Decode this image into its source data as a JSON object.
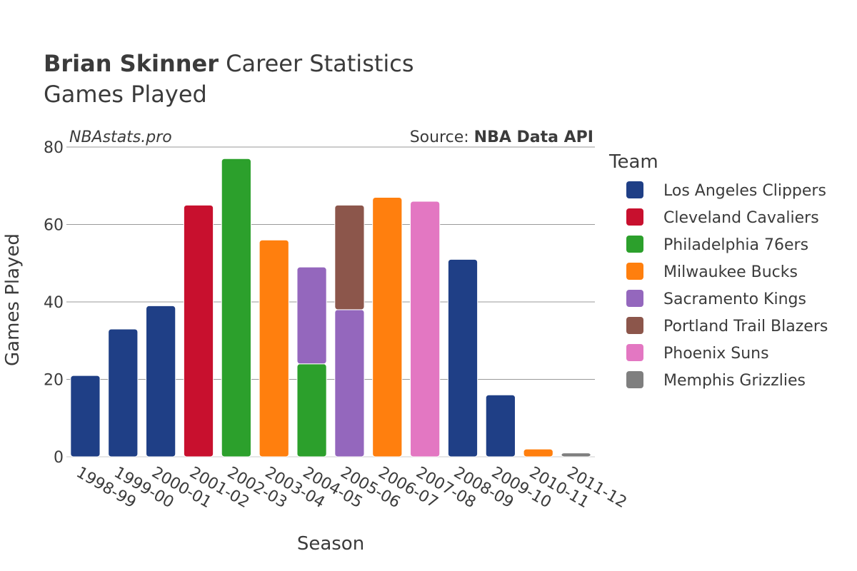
{
  "title": {
    "bold": "Brian Skinner",
    "rest": " Career Statistics"
  },
  "subtitle": "Games Played",
  "watermark": "NBAstats.pro",
  "source": {
    "prefix": "Source: ",
    "bold": "NBA Data API"
  },
  "legend_title": "Team",
  "chart_data": {
    "type": "bar",
    "stacked": true,
    "title": "Brian Skinner Career Statistics — Games Played",
    "xlabel": "Season",
    "ylabel": "Games Played",
    "ylim": [
      0,
      80
    ],
    "yticks": [
      0,
      20,
      40,
      60,
      80
    ],
    "categories": [
      "1998-99",
      "1999-00",
      "2000-01",
      "2001-02",
      "2002-03",
      "2003-04",
      "2004-05",
      "2005-06",
      "2006-07",
      "2007-08",
      "2008-09",
      "2009-10",
      "2010-11",
      "2011-12"
    ],
    "series": [
      {
        "name": "Los Angeles Clippers",
        "color": "#1f3f86",
        "values": [
          21,
          33,
          39,
          0,
          0,
          0,
          0,
          0,
          0,
          0,
          51,
          16,
          0,
          0
        ]
      },
      {
        "name": "Cleveland Cavaliers",
        "color": "#c8102e",
        "values": [
          0,
          0,
          0,
          65,
          0,
          0,
          0,
          0,
          0,
          0,
          0,
          0,
          0,
          0
        ]
      },
      {
        "name": "Philadelphia 76ers",
        "color": "#2ca02c",
        "values": [
          0,
          0,
          0,
          0,
          77,
          0,
          24,
          0,
          0,
          0,
          0,
          0,
          0,
          0
        ]
      },
      {
        "name": "Milwaukee Bucks",
        "color": "#ff7f0e",
        "values": [
          0,
          0,
          0,
          0,
          0,
          56,
          0,
          0,
          67,
          0,
          0,
          0,
          2,
          0
        ]
      },
      {
        "name": "Sacramento Kings",
        "color": "#9467bd",
        "values": [
          0,
          0,
          0,
          0,
          0,
          0,
          25,
          38,
          0,
          0,
          0,
          0,
          0,
          0
        ]
      },
      {
        "name": "Portland Trail Blazers",
        "color": "#8c564b",
        "values": [
          0,
          0,
          0,
          0,
          0,
          0,
          0,
          27,
          0,
          0,
          0,
          0,
          0,
          0
        ]
      },
      {
        "name": "Phoenix Suns",
        "color": "#e377c2",
        "values": [
          0,
          0,
          0,
          0,
          0,
          0,
          0,
          0,
          0,
          66,
          0,
          0,
          0,
          0
        ]
      },
      {
        "name": "Memphis Grizzlies",
        "color": "#7f7f7f",
        "values": [
          0,
          0,
          0,
          0,
          0,
          0,
          0,
          0,
          0,
          0,
          0,
          0,
          0,
          1
        ]
      }
    ],
    "legend_position": "right"
  }
}
